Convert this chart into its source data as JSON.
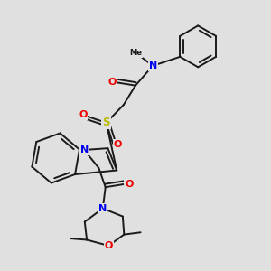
{
  "bg_color": "#e0e0e0",
  "bond_color": "#1a1a1a",
  "N_color": "#0000ee",
  "O_color": "#ee0000",
  "S_color": "#bbbb00",
  "lw": 1.4,
  "figsize": [
    3.0,
    3.0
  ],
  "dpi": 100,
  "xlim": [
    0,
    1
  ],
  "ylim": [
    0,
    1
  ]
}
